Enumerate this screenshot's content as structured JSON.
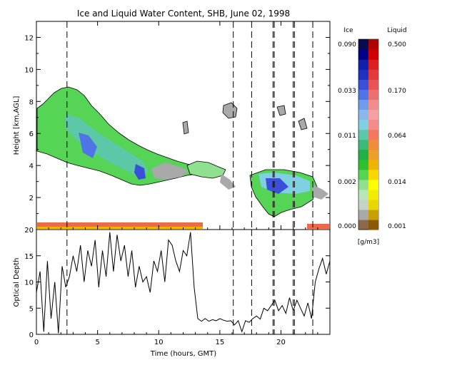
{
  "chart_data": [
    {
      "type": "heatmap",
      "title": "Ice and Liquid Water Content, SHB, June 02, 1998",
      "ylabel": "Height [km,AGL]",
      "xlim": [
        0,
        24
      ],
      "ylim": [
        0,
        13
      ],
      "yticks": [
        2,
        4,
        6,
        8,
        10,
        12
      ],
      "xticks": [
        0,
        5,
        10,
        15,
        20
      ],
      "vertical_dashed_lines_hours": [
        2.5,
        16.1,
        17.6,
        19.35,
        19.45,
        21.0,
        21.1,
        22.6
      ],
      "colorbar": {
        "unit_label": "[g/m3]",
        "ice_title": "Ice",
        "liquid_title": "Liquid",
        "ice_ticks": [
          "0.000",
          "0.002",
          "0.011",
          "0.033",
          "0.090"
        ],
        "liquid_ticks": [
          "0.001",
          "0.014",
          "0.064",
          "0.170",
          "0.500"
        ],
        "colors_bottom_to_top": [
          "#8a6a4a",
          "#a9a9a9",
          "#c5d2c5",
          "#b8e6b8",
          "#8fe08f",
          "#55d455",
          "#2fc02f",
          "#23b04a",
          "#3cba78",
          "#5cc8a8",
          "#80d0e4",
          "#8ab8ec",
          "#6f9cec",
          "#4f74e6",
          "#3a50d8",
          "#2030c0",
          "#1020a8",
          "#000088",
          "#0a0a50"
        ],
        "liquid_colors_bottom_to_top": [
          "#8b5a00",
          "#c8a000",
          "#e6d800",
          "#f2ec00",
          "#ffff00",
          "#f8d800",
          "#f0b400",
          "#eca028",
          "#f08c3c",
          "#f47860",
          "#f48c8c",
          "#f4a0a0",
          "#f08c8c",
          "#ec7070",
          "#e85454",
          "#e43a3a",
          "#dc2020",
          "#d00000",
          "#b00000"
        ]
      },
      "cloud_layers": [
        {
          "name": "upper ice cloud",
          "time_start": 0.0,
          "time_end": 13.0,
          "base_km_start": 4.8,
          "base_km_end": 3.6,
          "top_km_start": 6.8,
          "top_km_peak": 8.8,
          "top_km_end": 4.2
        },
        {
          "name": "mid cloud",
          "time_start": 12.8,
          "time_end": 15.9,
          "base_km": 3.2,
          "top_km": 4.2
        },
        {
          "name": "afternoon cloud",
          "time_start": 17.5,
          "time_end": 23.0,
          "base_km": 0.9,
          "top_km": 3.9
        },
        {
          "name": "cirrus fragments",
          "time_start": 15.5,
          "time_end": 16.5,
          "base_km": 6.5,
          "top_km": 7.8
        },
        {
          "name": "near-surface liquid layer",
          "time_start": 0.0,
          "time_end": 13.0,
          "base_km": 0.0,
          "top_km": 0.4
        }
      ]
    },
    {
      "type": "line",
      "ylabel": "Optical Depth",
      "xlabel": "Time (hours, GMT)",
      "xlim": [
        0,
        24
      ],
      "ylim": [
        0,
        20
      ],
      "yticks": [
        0,
        5,
        10,
        15,
        20
      ],
      "xticks": [
        0,
        5,
        10,
        15,
        20
      ],
      "x": [
        0.0,
        0.3,
        0.6,
        0.9,
        1.2,
        1.5,
        1.8,
        2.1,
        2.4,
        2.7,
        3.0,
        3.3,
        3.6,
        3.9,
        4.2,
        4.5,
        4.8,
        5.1,
        5.4,
        5.7,
        6.0,
        6.3,
        6.6,
        6.9,
        7.2,
        7.5,
        7.8,
        8.1,
        8.4,
        8.7,
        9.0,
        9.3,
        9.6,
        9.9,
        10.2,
        10.5,
        10.8,
        11.1,
        11.4,
        11.7,
        12.0,
        12.3,
        12.6,
        12.9,
        13.2,
        13.5,
        13.8,
        14.1,
        14.4,
        14.7,
        15.0,
        15.3,
        15.6,
        15.9,
        16.2,
        16.5,
        16.8,
        17.1,
        17.4,
        17.7,
        18.0,
        18.3,
        18.6,
        18.9,
        19.2,
        19.5,
        19.8,
        20.1,
        20.4,
        20.7,
        21.0,
        21.3,
        21.6,
        21.9,
        22.2,
        22.5,
        22.8,
        23.1,
        23.4,
        23.7,
        24.0
      ],
      "y": [
        8.0,
        12.0,
        0.5,
        14.0,
        3.0,
        10.0,
        0.2,
        13.0,
        9.0,
        11.0,
        15.0,
        12.0,
        17.0,
        10.0,
        16.0,
        13.0,
        18.0,
        9.0,
        16.0,
        11.0,
        19.5,
        12.0,
        19.0,
        14.0,
        17.0,
        11.0,
        16.0,
        9.0,
        13.0,
        10.0,
        11.0,
        8.0,
        14.0,
        12.0,
        16.0,
        10.0,
        18.0,
        17.0,
        14.0,
        12.0,
        16.0,
        15.0,
        19.5,
        9.0,
        3.0,
        2.5,
        3.0,
        2.5,
        2.8,
        2.6,
        3.0,
        2.7,
        2.5,
        2.6,
        1.8,
        2.6,
        0.5,
        2.6,
        2.3,
        3.0,
        3.5,
        2.9,
        5.0,
        4.5,
        5.5,
        6.5,
        4.5,
        5.5,
        4.0,
        7.0,
        4.5,
        6.5,
        5.0,
        3.5,
        6.0,
        3.0,
        10.0,
        12.5,
        14.5,
        11.5,
        14.0
      ]
    }
  ]
}
